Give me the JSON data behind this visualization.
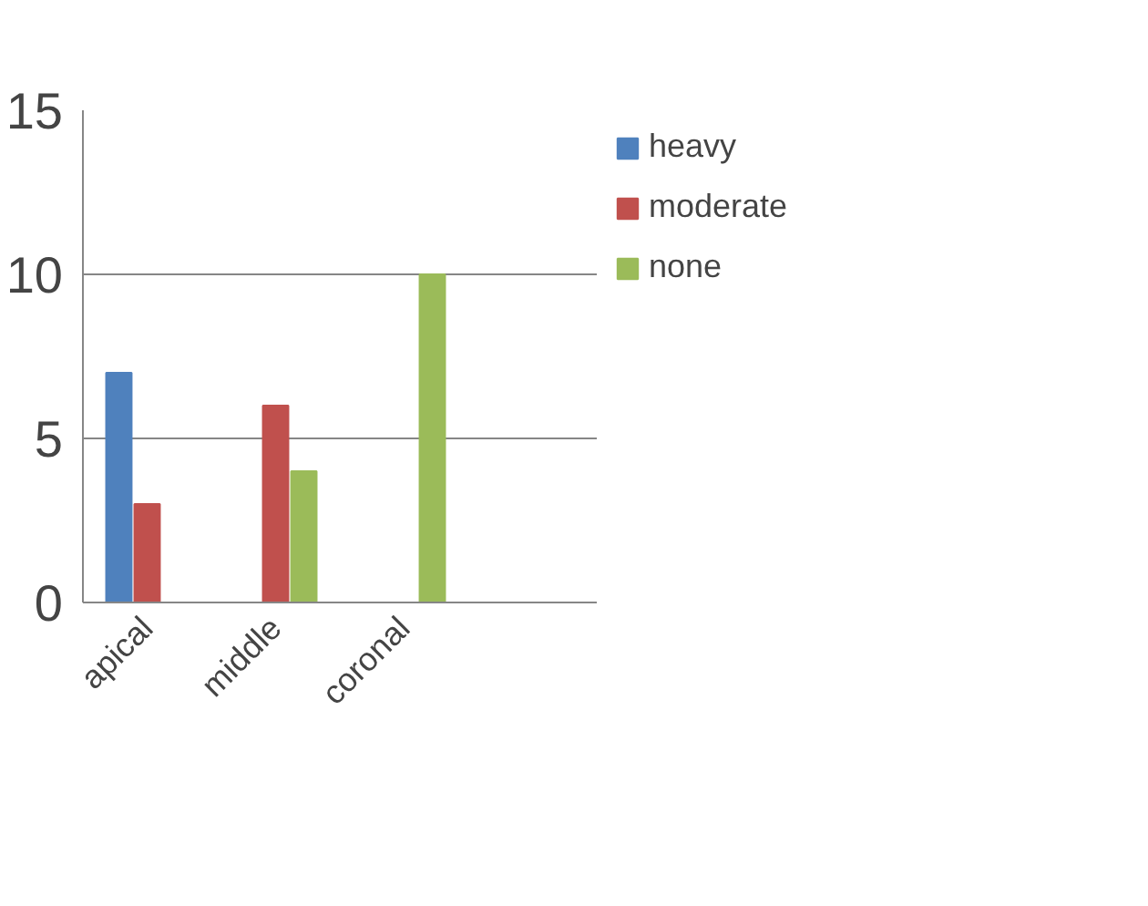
{
  "chart_data": {
    "type": "bar",
    "categories": [
      "apical",
      "middle",
      "coronal",
      null
    ],
    "series": [
      {
        "name": "heavy",
        "color": "#4f81bd",
        "values": [
          7,
          null,
          null,
          null
        ]
      },
      {
        "name": "moderate",
        "color": "#c0504d",
        "values": [
          3,
          6,
          null,
          null
        ]
      },
      {
        "name": "none",
        "color": "#9bbb59",
        "values": [
          null,
          4,
          10,
          null
        ]
      }
    ],
    "ylim": [
      0,
      15
    ],
    "yticks": [
      0,
      5,
      10,
      15
    ],
    "grid": "y",
    "legend": "right"
  }
}
